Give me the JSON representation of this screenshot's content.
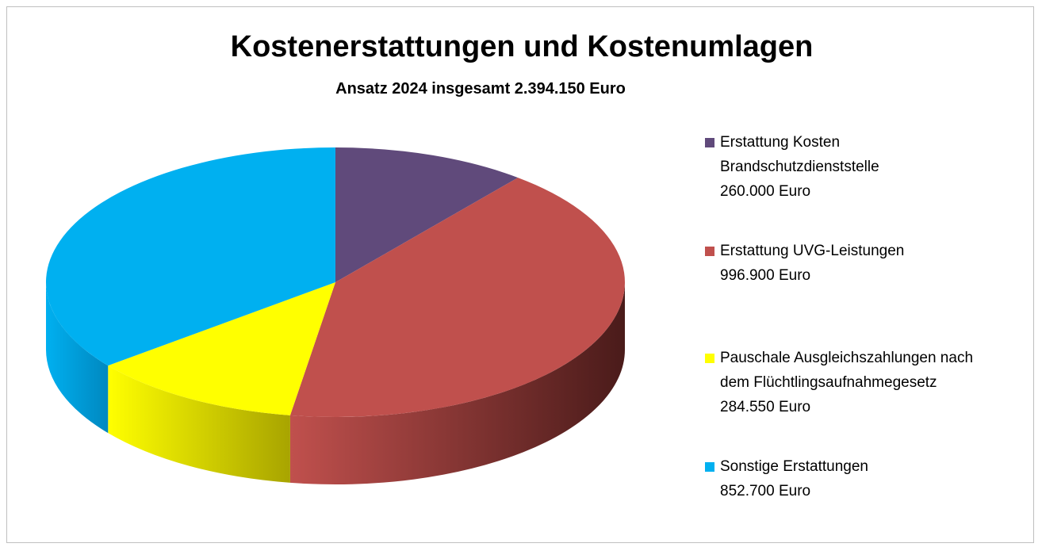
{
  "chart_data": {
    "type": "pie3d",
    "title": "Kostenerstattungen und Kostenumlagen",
    "subtitle": "Ansatz 2024 insgesamt 2.394.150 Euro",
    "categories": [
      "Erstattung Kosten Brandschutzdienststelle",
      "Erstattung UVG-Leistungen",
      "Pauschale Ausgleichszahlungen nach dem Flüchtlingsaufnahmegesetz",
      "Sonstige Erstattungen"
    ],
    "values": [
      260000,
      996900,
      284550,
      852700
    ],
    "value_labels": [
      "260.000 Euro",
      "996.900 Euro",
      "284.550 Euro",
      "852.700 Euro"
    ],
    "colors": [
      "#604a7b",
      "#c0504d",
      "#ffff00",
      "#00b0f0"
    ],
    "side_colors": [
      "#3e2f52",
      "#4a1b1a",
      "#a8a400",
      "#0088c0"
    ],
    "legend": "right"
  }
}
